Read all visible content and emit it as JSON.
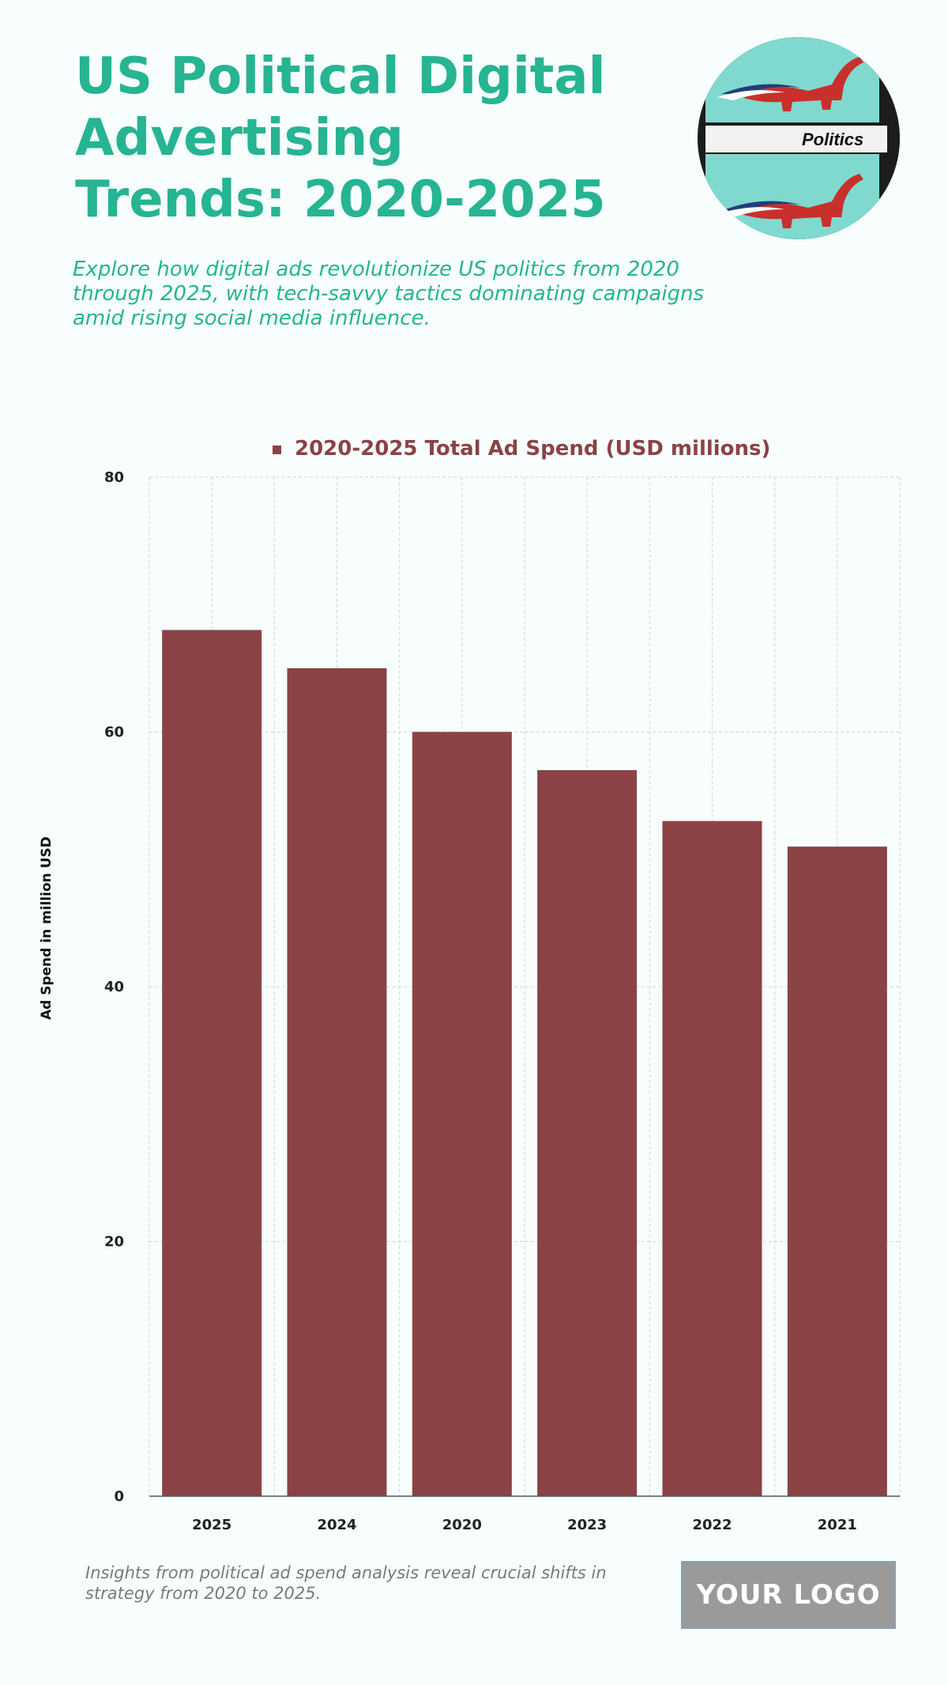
{
  "header": {
    "title": "US Political Digital Advertising Trends: 2020-2025",
    "subtitle": "Explore how digital ads revolutionize US politics from 2020 through 2025, with tech-savvy tactics dominating campaigns amid rising social media influence.",
    "image_caption": "Politics"
  },
  "colors": {
    "accent": "#26b492",
    "bar": "#8b4245",
    "background": "#f7fefd"
  },
  "chart_data": {
    "type": "bar",
    "categories": [
      "2025",
      "2024",
      "2020",
      "2023",
      "2022",
      "2021"
    ],
    "series": [
      {
        "name": "2020-2025 Total Ad Spend (USD millions)",
        "values": [
          68,
          65,
          60,
          57,
          53,
          51
        ]
      }
    ],
    "ylabel": "Ad Spend in million USD",
    "xlabel": "",
    "ylim": [
      0,
      80
    ],
    "yticks": [
      0,
      20,
      40,
      60,
      80
    ],
    "grid": true,
    "legend": "top-center"
  },
  "footer": {
    "note": "Insights from political ad spend analysis reveal crucial shifts in strategy from 2020 to 2025.",
    "logo_text": "YOUR LOGO"
  }
}
